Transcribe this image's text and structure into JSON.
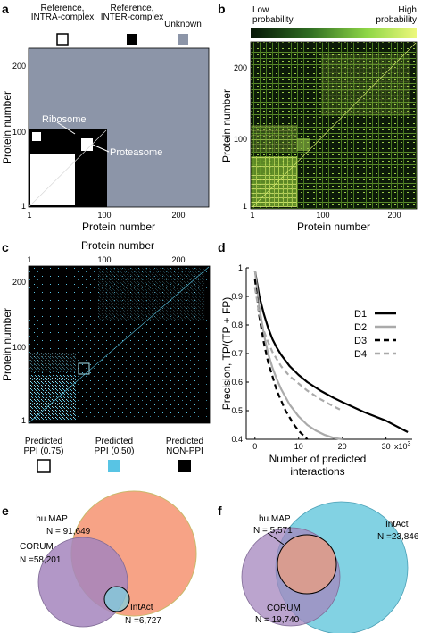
{
  "panels": {
    "a": {
      "letter": "a",
      "legend": [
        {
          "label_line1": "Reference,",
          "label_line2": "INTRA-complex",
          "color": "#ffffff"
        },
        {
          "label_line1": "Reference,",
          "label_line2": "INTER-complex",
          "color": "#000000"
        },
        {
          "label_line1": "Unknown",
          "label_line2": "",
          "color": "#8c95a8"
        }
      ],
      "annotations": [
        "Ribosome",
        "Proteasome"
      ],
      "xlabel": "Protein number",
      "ylabel": "Protein number",
      "xticks": [
        "1",
        "100",
        "200"
      ],
      "yticks": [
        "1",
        "100",
        "200"
      ]
    },
    "b": {
      "letter": "b",
      "colorbar_low_line1": "Low",
      "colorbar_low_line2": "probability",
      "colorbar_high_line1": "High",
      "colorbar_high_line2": "probability",
      "xlabel": "Protein number",
      "ylabel": "Protein number",
      "xticks": [
        "1",
        "100",
        "200"
      ],
      "yticks": [
        "1",
        "100",
        "200"
      ]
    },
    "c": {
      "letter": "c",
      "xlabel": "Protein number",
      "ylabel": "Protein number",
      "xticks": [
        "1",
        "100",
        "200"
      ],
      "yticks": [
        "1",
        "100",
        "200"
      ],
      "legend": [
        {
          "label_line1": "Predicted",
          "label_line2": "PPI (0.75)",
          "color": "#ffffff"
        },
        {
          "label_line1": "Predicted",
          "label_line2": "PPI (0.50)",
          "color": "#58c4e4"
        },
        {
          "label_line1": "Predicted",
          "label_line2": "NON-PPI",
          "color": "#000000"
        }
      ]
    },
    "d": {
      "letter": "d"
    },
    "e": {
      "letter": "e"
    },
    "f": {
      "letter": "f"
    }
  },
  "chart_data": [
    {
      "panel": "d",
      "type": "line",
      "xlabel_line1": "Number of predicted",
      "xlabel_line2": "interactions",
      "ylabel": "Precision, TP/(TP + FP)",
      "x_multiplier_label": "x10",
      "x_multiplier_exp": "3",
      "xlim": [
        -2,
        36
      ],
      "ylim": [
        0.4,
        1.0
      ],
      "xticks": [
        0,
        10,
        20,
        30
      ],
      "yticks": [
        0.4,
        0.5,
        0.6,
        0.7,
        0.8,
        0.9,
        1
      ],
      "series": [
        {
          "name": "D1",
          "color": "#000000",
          "dash": "solid",
          "x": [
            0,
            1,
            2,
            3,
            4,
            5,
            6,
            8,
            10,
            12,
            15,
            18,
            20,
            25,
            30,
            35
          ],
          "y": [
            0.99,
            0.9,
            0.84,
            0.79,
            0.75,
            0.72,
            0.695,
            0.655,
            0.625,
            0.6,
            0.57,
            0.545,
            0.53,
            0.495,
            0.465,
            0.425
          ]
        },
        {
          "name": "D2",
          "color": "#aaaaaa",
          "dash": "solid",
          "x": [
            0,
            1,
            2,
            3,
            4,
            5,
            6,
            8,
            10,
            12,
            14,
            16,
            18,
            20
          ],
          "y": [
            0.99,
            0.86,
            0.77,
            0.7,
            0.65,
            0.61,
            0.575,
            0.52,
            0.48,
            0.45,
            0.43,
            0.415,
            0.405,
            0.4
          ]
        },
        {
          "name": "D3",
          "color": "#000000",
          "dash": "dashed",
          "x": [
            0,
            1,
            2,
            3,
            4,
            5,
            6,
            7,
            8,
            9,
            10,
            11,
            12
          ],
          "y": [
            0.96,
            0.83,
            0.74,
            0.67,
            0.62,
            0.57,
            0.535,
            0.5,
            0.475,
            0.45,
            0.43,
            0.415,
            0.4
          ]
        },
        {
          "name": "D4",
          "color": "#aaaaaa",
          "dash": "dashed",
          "x": [
            0,
            1,
            2,
            3,
            4,
            5,
            6,
            8,
            10,
            12,
            15,
            18,
            20
          ],
          "y": [
            0.93,
            0.84,
            0.78,
            0.74,
            0.705,
            0.68,
            0.655,
            0.62,
            0.595,
            0.57,
            0.54,
            0.515,
            0.5
          ]
        }
      ]
    },
    {
      "panel": "e",
      "type": "venn",
      "sets": [
        {
          "name": "hu.MAP",
          "size": "N = 91,649",
          "color": "#f7a386"
        },
        {
          "name": "CORUM",
          "size": "N =58,201",
          "color": "#a485bd"
        },
        {
          "name": "IntAct",
          "size": "N =6,727",
          "color": "#7fd1e0"
        }
      ]
    },
    {
      "panel": "f",
      "type": "venn",
      "sets": [
        {
          "name": "hu.MAP",
          "size": "N = 5,571",
          "color": "#e79c82"
        },
        {
          "name": "IntAct",
          "size": "N =23,846",
          "color": "#74cde0"
        },
        {
          "name": "CORUM",
          "size": "N = 19,740",
          "color": "#a485bd"
        }
      ]
    }
  ]
}
